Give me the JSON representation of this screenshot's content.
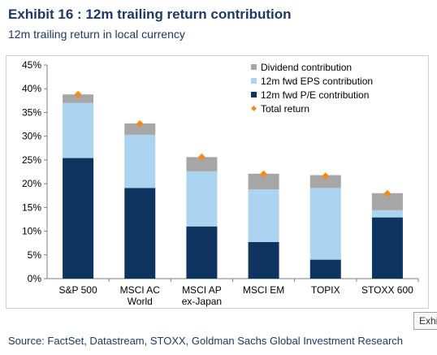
{
  "exhibit": {
    "title": "Exhibit 16 : 12m trailing return contribution",
    "subtitle": "12m trailing return in local currency",
    "source": "Source: FactSet, Datastream, STOXX, Goldman Sachs Global Investment Research",
    "clipped_tag": "Exhi"
  },
  "colors": {
    "pe": "#0e3560",
    "eps": "#aad4f0",
    "dividend": "#a6a6a6",
    "total": "#f28a1e",
    "title": "#1f3864"
  },
  "chart_data": {
    "type": "bar",
    "stacked": true,
    "categories": [
      [
        "S&P 500"
      ],
      [
        "MSCI AC",
        "World"
      ],
      [
        "MSCI AP",
        "ex-Japan"
      ],
      [
        "MSCI EM"
      ],
      [
        "TOPIX"
      ],
      [
        "STOXX 600"
      ]
    ],
    "series": [
      {
        "name": "12m fwd P/E contribution",
        "color_key": "pe",
        "values": [
          25.4,
          19.1,
          11.0,
          7.7,
          4.0,
          12.9
        ]
      },
      {
        "name": "12m fwd EPS contribution",
        "color_key": "eps",
        "values": [
          11.6,
          11.2,
          11.6,
          11.1,
          15.1,
          1.5
        ]
      },
      {
        "name": "Dividend contribution",
        "color_key": "dividend",
        "values": [
          1.8,
          2.4,
          3.0,
          3.3,
          2.7,
          3.6
        ]
      }
    ],
    "total_return": {
      "name": "Total return",
      "values": [
        38.8,
        32.6,
        25.6,
        22.0,
        21.6,
        17.9
      ]
    },
    "legend_order": [
      "Dividend contribution",
      "12m fwd EPS contribution",
      "12m fwd P/E contribution",
      "Total return"
    ],
    "legend_position": "top-right",
    "ylim": [
      0,
      45
    ],
    "yticks": [
      "0%",
      "5%",
      "10%",
      "15%",
      "20%",
      "25%",
      "30%",
      "35%",
      "40%",
      "45%"
    ],
    "grid": false
  }
}
